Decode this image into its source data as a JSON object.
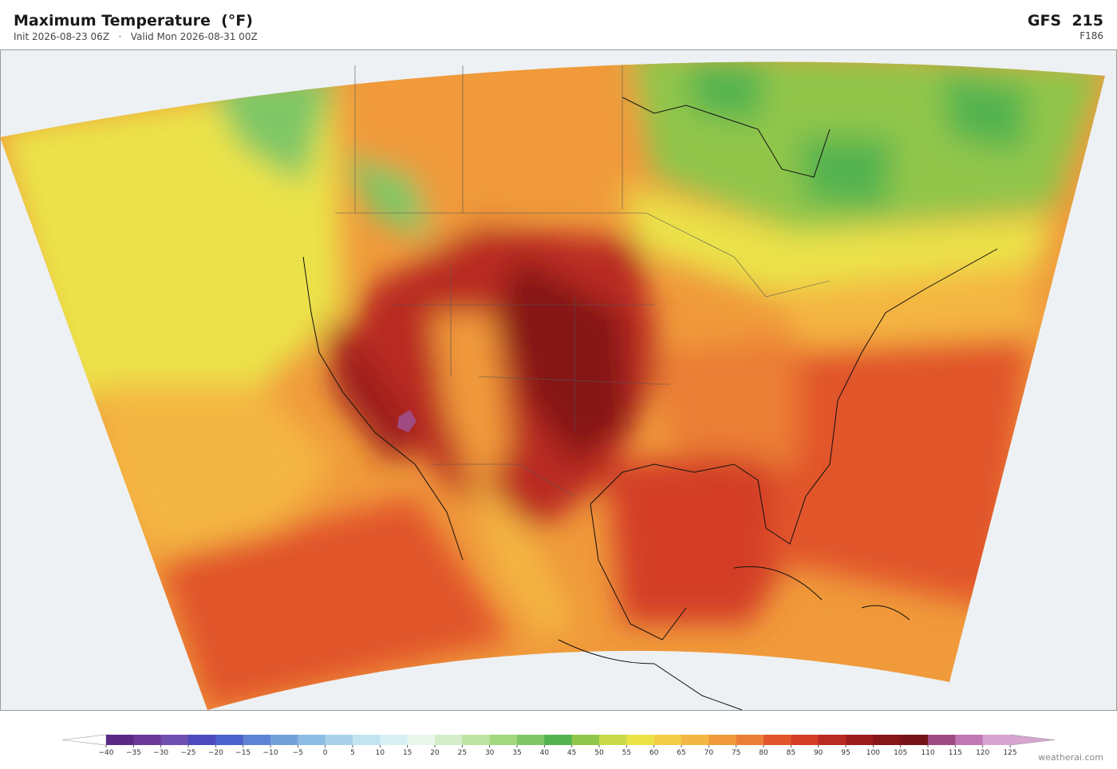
{
  "header": {
    "title": "Maximum Temperature  (°F)",
    "init": "Init 2026-08-23 06Z",
    "separator": "·",
    "valid": "Valid Mon 2026-08-31 00Z",
    "model": "GFS  215",
    "forecast_hour": "F186"
  },
  "colorbar": {
    "ticks": [
      "−40",
      "−35",
      "−30",
      "−25",
      "−20",
      "−15",
      "−10",
      "−5",
      "0",
      "5",
      "10",
      "15",
      "20",
      "25",
      "30",
      "35",
      "40",
      "45",
      "50",
      "55",
      "60",
      "65",
      "70",
      "75",
      "80",
      "85",
      "90",
      "95",
      "100",
      "105",
      "110",
      "115",
      "120",
      "125"
    ],
    "colors": [
      "#5a2a86",
      "#6b3a98",
      "#6f4fb0",
      "#4d4bbf",
      "#4c62cc",
      "#5e83d4",
      "#74a0da",
      "#8dbce2",
      "#a9d2ea",
      "#c2e3f0",
      "#d8eff3",
      "#e9f6ec",
      "#d3edca",
      "#bde3a2",
      "#a2d77f",
      "#7fc766",
      "#52b350",
      "#91c64c",
      "#c9da49",
      "#ebe248",
      "#f4cd48",
      "#f4b642",
      "#f09a3b",
      "#eb7e36",
      "#e1552c",
      "#d33d26",
      "#b92a22",
      "#9c1d1e",
      "#861619",
      "#761318",
      "#a04a82",
      "#c077b4",
      "#d8a4d0"
    ],
    "under_color": "#ffffff",
    "over_color": "#d8a4d0"
  },
  "watermark": "weatherai.com"
}
